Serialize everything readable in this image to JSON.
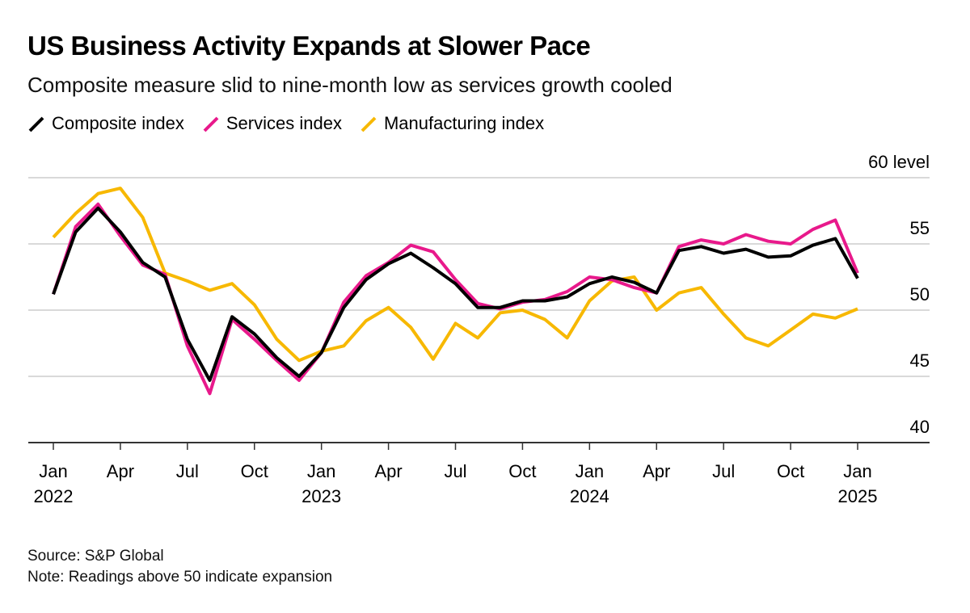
{
  "chart_data": {
    "type": "line",
    "title": "US Business Activity Expands at Slower Pace",
    "subtitle": "Composite measure slid to nine-month low as services growth cooled",
    "categories": [
      "Jan 2022",
      null,
      null,
      "Apr",
      null,
      null,
      "Jul",
      null,
      null,
      "Oct",
      null,
      null,
      "Jan 2023",
      null,
      null,
      "Apr",
      null,
      null,
      "Jul",
      null,
      null,
      "Oct",
      null,
      null,
      "Jan 2024",
      null,
      null,
      "Apr",
      null,
      null,
      "Jul",
      null,
      null,
      "Oct",
      null,
      null,
      "Jan 2025"
    ],
    "series": [
      {
        "name": "Composite index",
        "color": "#000000",
        "values": [
          51.2,
          55.9,
          57.7,
          55.9,
          53.6,
          52.5,
          47.8,
          44.7,
          49.5,
          48.2,
          46.4,
          45.0,
          46.8,
          50.2,
          52.3,
          53.5,
          54.3,
          53.2,
          52.0,
          50.2,
          50.2,
          50.7,
          50.7,
          51.0,
          52.0,
          52.5,
          52.1,
          51.3,
          54.5,
          54.8,
          54.3,
          54.6,
          54.0,
          54.1,
          54.9,
          55.4,
          52.4
        ]
      },
      {
        "name": "Services index",
        "color": "#e8198b",
        "values": [
          51.2,
          56.3,
          58.0,
          55.6,
          53.4,
          52.7,
          47.3,
          43.7,
          49.3,
          47.8,
          46.2,
          44.7,
          46.8,
          50.6,
          52.6,
          53.6,
          54.9,
          54.4,
          52.3,
          50.5,
          50.1,
          50.6,
          50.8,
          51.4,
          52.5,
          52.3,
          51.7,
          51.3,
          54.8,
          55.3,
          55.0,
          55.7,
          55.2,
          55.0,
          56.1,
          56.8,
          52.8
        ]
      },
      {
        "name": "Manufacturing index",
        "color": "#f7b800",
        "values": [
          55.5,
          57.3,
          58.8,
          59.2,
          57.0,
          52.8,
          52.2,
          51.5,
          52.0,
          50.4,
          47.8,
          46.2,
          46.9,
          47.3,
          49.2,
          50.2,
          48.7,
          46.3,
          49.0,
          47.9,
          49.8,
          50.0,
          49.3,
          47.9,
          50.7,
          52.2,
          52.5,
          50.0,
          51.3,
          51.7,
          49.7,
          47.9,
          47.3,
          48.5,
          49.7,
          49.4,
          50.1
        ]
      }
    ],
    "ylim": [
      40,
      60
    ],
    "yticks": [
      40,
      45,
      50,
      55,
      {
        "value": 60,
        "label": "60 level"
      }
    ],
    "grid": true,
    "source": "Source: S&P Global",
    "note": "Note: Readings above 50 indicate expansion"
  }
}
